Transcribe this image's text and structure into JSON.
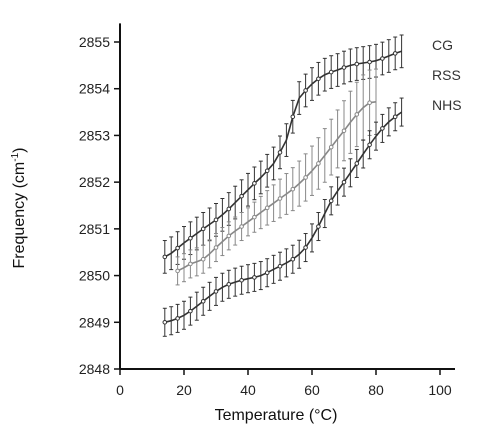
{
  "chart_data": {
    "type": "line",
    "title": "",
    "xlabel": "Temperature (°C)",
    "ylabel_main": "Frequency (cm",
    "ylabel_sup": "-1",
    "ylabel_close": ")",
    "xlim": [
      0,
      100
    ],
    "ylim": [
      2848,
      2855.4
    ],
    "xticks": [
      0,
      20,
      40,
      60,
      80,
      100
    ],
    "yticks": [
      2848,
      2849,
      2850,
      2851,
      2852,
      2853,
      2854,
      2855
    ],
    "grid": false,
    "legend_position": "top-right",
    "series": [
      {
        "name": "CG",
        "color": "#333333",
        "x": [
          14,
          20,
          26,
          32,
          38,
          44,
          48,
          52,
          54,
          56,
          60,
          64,
          68,
          72,
          76,
          80,
          84,
          88
        ],
        "y": [
          2850.4,
          2850.7,
          2851.0,
          2851.3,
          2851.7,
          2852.1,
          2852.4,
          2852.9,
          2853.4,
          2853.8,
          2854.1,
          2854.3,
          2854.4,
          2854.5,
          2854.55,
          2854.6,
          2854.7,
          2854.8
        ],
        "err": 0.35
      },
      {
        "name": "RSS",
        "color": "#888888",
        "x": [
          18,
          22,
          26,
          30,
          34,
          38,
          42,
          46,
          50,
          54,
          58,
          62,
          66,
          70,
          74,
          78,
          80
        ],
        "y": [
          2850.1,
          2850.25,
          2850.35,
          2850.6,
          2850.85,
          2851.05,
          2851.25,
          2851.45,
          2851.65,
          2851.85,
          2852.1,
          2852.4,
          2852.75,
          2853.1,
          2853.45,
          2853.7,
          2853.72
        ],
        "err": 0.5
      },
      {
        "name": "NHS",
        "color": "#333333",
        "x": [
          14,
          20,
          26,
          32,
          38,
          44,
          50,
          54,
          58,
          62,
          66,
          70,
          74,
          78,
          82,
          86,
          88
        ],
        "y": [
          2849.0,
          2849.15,
          2849.45,
          2849.75,
          2849.9,
          2850.0,
          2850.2,
          2850.35,
          2850.6,
          2851.05,
          2851.6,
          2852.0,
          2852.4,
          2852.8,
          2853.15,
          2853.4,
          2853.5
        ],
        "err": 0.3
      }
    ]
  }
}
